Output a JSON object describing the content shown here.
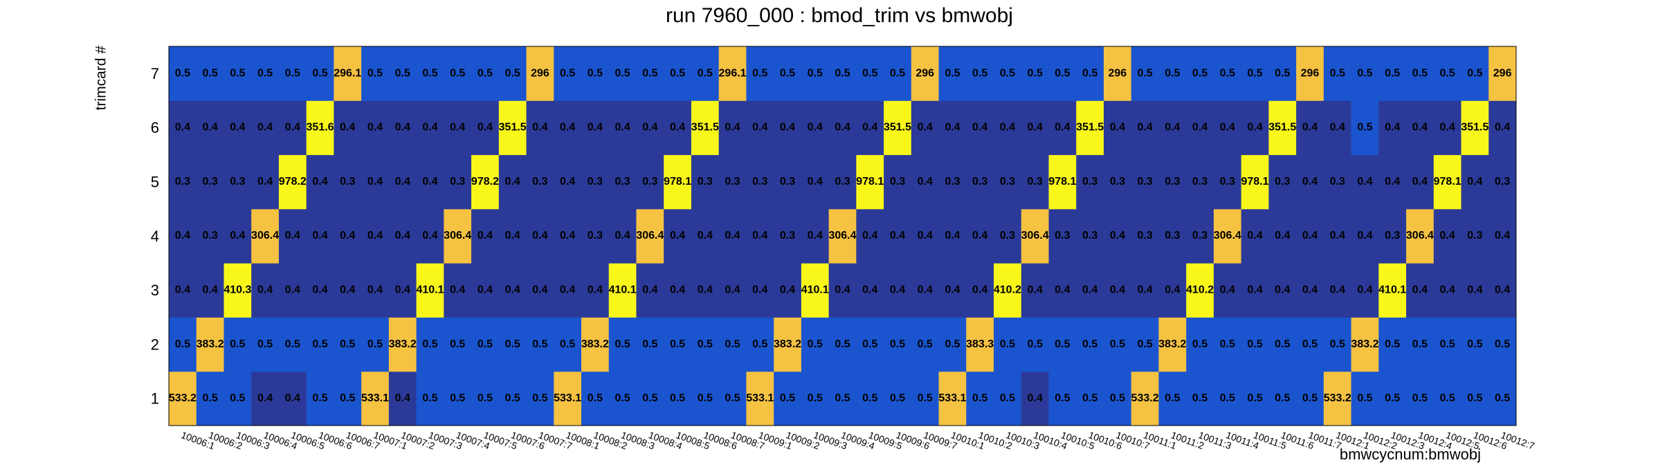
{
  "chart_data": {
    "type": "heatmap",
    "title": "run 7960_000 : bmod_trim vs bmwobj",
    "x_label": "bmwcycnum:bmwobj",
    "y_label": "trimcard #",
    "categories": [
      "10006:1",
      "10006:2",
      "10006:3",
      "10006:4",
      "10006:5",
      "10006:6",
      "10006:7",
      "10007:1",
      "10007:2",
      "10007:3",
      "10007:4",
      "10007:5",
      "10007:6",
      "10007:7",
      "10008:1",
      "10008:2",
      "10008:3",
      "10008:4",
      "10008:5",
      "10008:6",
      "10008:7",
      "10009:1",
      "10009:2",
      "10009:3",
      "10009:4",
      "10009:5",
      "10009:6",
      "10009:7",
      "10010:1",
      "10010:2",
      "10010:3",
      "10010:4",
      "10010:5",
      "10010:6",
      "10010:7",
      "10011:1",
      "10011:2",
      "10011:3",
      "10011:4",
      "10011:5",
      "10011:6",
      "10011:7",
      "10012:1",
      "10012:2",
      "10012:3",
      "10012:4",
      "10012:5",
      "10012:6",
      "10012:7"
    ],
    "series": [
      {
        "name": "1",
        "color": "#f5c242",
        "values": [
          533.2,
          0.5,
          0.5,
          0.4,
          0.4,
          0.5,
          0.5,
          533.1,
          0.4,
          0.5,
          0.5,
          0.5,
          0.5,
          0.5,
          533.1,
          0.5,
          0.5,
          0.5,
          0.5,
          0.5,
          0.5,
          533.1,
          0.5,
          0.5,
          0.5,
          0.5,
          0.5,
          0.5,
          533.1,
          0.5,
          0.5,
          0.4,
          0.5,
          0.5,
          0.5,
          533.2,
          0.5,
          0.5,
          0.5,
          0.5,
          0.5,
          0.5,
          533.2,
          0.5,
          0.5,
          0.5,
          0.5,
          0.5,
          0.5
        ]
      },
      {
        "name": "2",
        "color": "#f5c242",
        "values": [
          0.5,
          383.2,
          0.5,
          0.5,
          0.5,
          0.5,
          0.5,
          0.5,
          383.2,
          0.5,
          0.5,
          0.5,
          0.5,
          0.5,
          0.5,
          383.2,
          0.5,
          0.5,
          0.5,
          0.5,
          0.5,
          0.5,
          383.2,
          0.5,
          0.5,
          0.5,
          0.5,
          0.5,
          0.5,
          383.3,
          0.5,
          0.5,
          0.5,
          0.5,
          0.5,
          0.5,
          383.2,
          0.5,
          0.5,
          0.5,
          0.5,
          0.5,
          0.5,
          383.2,
          0.5,
          0.5,
          0.5,
          0.5,
          0.5
        ]
      },
      {
        "name": "3",
        "color": "#f9f71a",
        "values": [
          0.4,
          0.4,
          410.3,
          0.4,
          0.4,
          0.4,
          0.4,
          0.4,
          0.4,
          410.1,
          0.4,
          0.4,
          0.4,
          0.4,
          0.4,
          0.4,
          410.1,
          0.4,
          0.4,
          0.4,
          0.4,
          0.4,
          0.4,
          410.1,
          0.4,
          0.4,
          0.4,
          0.4,
          0.4,
          0.4,
          410.2,
          0.4,
          0.4,
          0.4,
          0.4,
          0.4,
          0.4,
          410.2,
          0.4,
          0.4,
          0.4,
          0.4,
          0.4,
          0.4,
          410.1,
          0.4,
          0.4,
          0.4,
          0.4
        ]
      },
      {
        "name": "4",
        "color": "#f5c242",
        "values": [
          0.4,
          0.3,
          0.4,
          306.4,
          0.4,
          0.4,
          0.4,
          0.4,
          0.4,
          0.4,
          306.4,
          0.4,
          0.4,
          0.4,
          0.4,
          0.3,
          0.4,
          306.4,
          0.4,
          0.4,
          0.4,
          0.4,
          0.3,
          0.4,
          306.4,
          0.4,
          0.4,
          0.4,
          0.4,
          0.4,
          0.3,
          306.4,
          0.3,
          0.3,
          0.4,
          0.3,
          0.3,
          0.3,
          306.4,
          0.4,
          0.4,
          0.4,
          0.4,
          0.4,
          0.3,
          306.4,
          0.4,
          0.3,
          0.4
        ]
      },
      {
        "name": "5",
        "color": "#f9f71a",
        "values": [
          0.3,
          0.3,
          0.3,
          0.4,
          978.2,
          0.4,
          0.3,
          0.4,
          0.4,
          0.4,
          0.3,
          978.2,
          0.4,
          0.3,
          0.4,
          0.3,
          0.3,
          0.3,
          978.1,
          0.3,
          0.3,
          0.3,
          0.3,
          0.4,
          0.3,
          978.1,
          0.3,
          0.4,
          0.3,
          0.3,
          0.3,
          0.3,
          978.1,
          0.3,
          0.3,
          0.3,
          0.3,
          0.3,
          0.3,
          978.1,
          0.3,
          0.4,
          0.3,
          0.4,
          0.4,
          0.4,
          978.1,
          0.4,
          0.3
        ]
      },
      {
        "name": "6",
        "color": "#f9f71a",
        "values": [
          0.4,
          0.4,
          0.4,
          0.4,
          0.4,
          351.6,
          0.4,
          0.4,
          0.4,
          0.4,
          0.4,
          0.4,
          351.5,
          0.4,
          0.4,
          0.4,
          0.4,
          0.4,
          0.4,
          351.5,
          0.4,
          0.4,
          0.4,
          0.4,
          0.4,
          0.4,
          351.5,
          0.4,
          0.4,
          0.4,
          0.4,
          0.4,
          0.4,
          351.5,
          0.4,
          0.4,
          0.4,
          0.4,
          0.4,
          0.4,
          351.5,
          0.4,
          0.4,
          0.5,
          0.4,
          0.4,
          0.4,
          351.5,
          0.4
        ]
      },
      {
        "name": "7",
        "color": "#f5c242",
        "values": [
          0.5,
          0.5,
          0.5,
          0.5,
          0.5,
          0.5,
          296.1,
          0.5,
          0.5,
          0.5,
          0.5,
          0.5,
          0.5,
          296.0,
          0.5,
          0.5,
          0.5,
          0.5,
          0.5,
          0.5,
          296.1,
          0.5,
          0.5,
          0.5,
          0.5,
          0.5,
          0.5,
          296.0,
          0.5,
          0.5,
          0.5,
          0.5,
          0.5,
          0.5,
          296.0,
          0.5,
          0.5,
          0.5,
          0.5,
          0.5,
          0.5,
          296.0,
          0.5,
          0.5,
          0.5,
          0.5,
          0.5,
          0.5,
          296.0
        ]
      }
    ]
  }
}
